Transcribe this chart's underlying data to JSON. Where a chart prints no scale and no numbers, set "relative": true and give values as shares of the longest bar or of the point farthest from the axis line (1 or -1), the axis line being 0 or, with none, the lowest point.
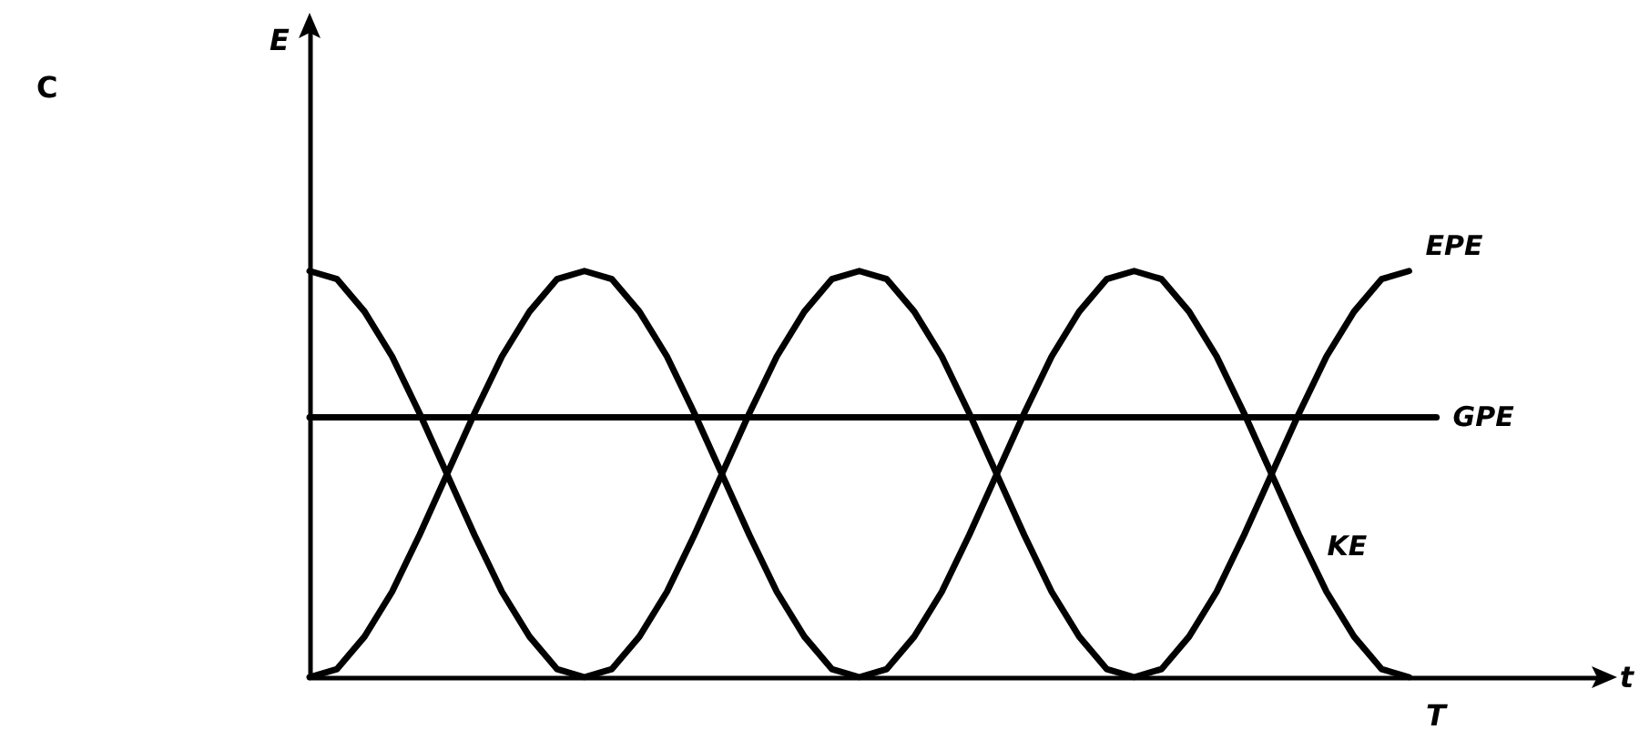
{
  "chart_data": {
    "type": "line",
    "relative": true,
    "xlabel": "t",
    "annotations": [
      "C",
      "T",
      "E"
    ],
    "categories": [
      null,
      null,
      null,
      null,
      null,
      null,
      null,
      null,
      null,
      null,
      null,
      null,
      null,
      null,
      null,
      null,
      null,
      null,
      null,
      null,
      null,
      null,
      null,
      null,
      null,
      null,
      null,
      null,
      null,
      null,
      null,
      null,
      null,
      null,
      null,
      null,
      null,
      null,
      null,
      null,
      null,
      null,
      null,
      null,
      null,
      null,
      null,
      null
    ],
    "series": [
      {
        "name": "EPE",
        "color": "#000000",
        "values": [
          1,
          0.98,
          0.9,
          0.79,
          0.65,
          0.5,
          0.35,
          0.21,
          0.1,
          0.02,
          0,
          0.02,
          0.1,
          0.21,
          0.35,
          0.5,
          0.65,
          0.79,
          0.9,
          0.98,
          1,
          0.98,
          0.9,
          0.79,
          0.65,
          0.5,
          0.35,
          0.21,
          0.1,
          0.02,
          0,
          0.02,
          0.1,
          0.21,
          0.35,
          0.5,
          0.65,
          0.79,
          0.9,
          0.98,
          1,
          null,
          null,
          null,
          null,
          null,
          null,
          null
        ]
      },
      {
        "name": "GPE",
        "color": "#000000",
        "values": [
          0.64,
          0.64,
          0.64,
          0.64,
          0.64,
          0.64,
          0.64,
          0.64,
          0.64,
          0.64,
          0.64,
          0.64,
          0.64,
          0.64,
          0.64,
          0.64,
          0.64,
          0.64,
          0.64,
          0.64,
          0.64,
          0.64,
          0.64,
          0.64,
          0.64,
          0.64,
          0.64,
          0.64,
          0.64,
          0.64,
          0.64,
          0.64,
          0.64,
          0.64,
          0.64,
          0.64,
          0.64,
          0.64,
          0.64,
          0.64,
          0.64,
          0.64,
          null,
          null,
          null,
          null,
          null,
          null
        ]
      },
      {
        "name": "KE",
        "color": "#000000",
        "values": [
          0,
          0.02,
          0.1,
          0.21,
          0.35,
          0.5,
          0.65,
          0.79,
          0.9,
          0.98,
          1,
          0.98,
          0.9,
          0.79,
          0.65,
          0.5,
          0.35,
          0.21,
          0.1,
          0.02,
          0,
          0.02,
          0.1,
          0.21,
          0.35,
          0.5,
          0.65,
          0.79,
          0.9,
          0.98,
          1,
          0.98,
          0.9,
          0.79,
          0.65,
          0.5,
          0.35,
          0.21,
          0.1,
          0.02,
          0,
          null,
          null,
          null,
          null,
          null,
          null,
          null
        ]
      }
    ],
    "grid": false,
    "legend": false,
    "marker": "none",
    "line_style": "solid"
  }
}
